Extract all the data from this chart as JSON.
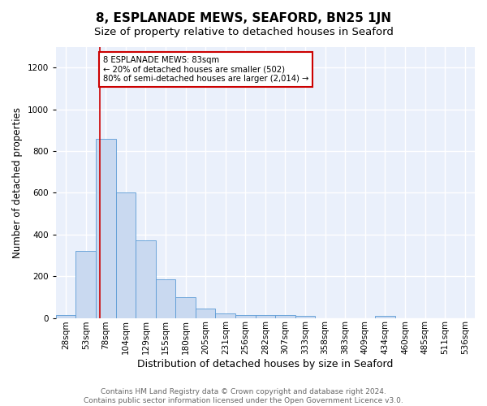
{
  "title": "8, ESPLANADE MEWS, SEAFORD, BN25 1JN",
  "subtitle": "Size of property relative to detached houses in Seaford",
  "xlabel": "Distribution of detached houses by size in Seaford",
  "ylabel": "Number of detached properties",
  "bar_labels": [
    "28sqm",
    "53sqm",
    "78sqm",
    "104sqm",
    "129sqm",
    "155sqm",
    "180sqm",
    "205sqm",
    "231sqm",
    "256sqm",
    "282sqm",
    "307sqm",
    "333sqm",
    "358sqm",
    "383sqm",
    "409sqm",
    "434sqm",
    "460sqm",
    "485sqm",
    "511sqm",
    "536sqm"
  ],
  "bar_values": [
    15,
    320,
    860,
    600,
    370,
    185,
    100,
    45,
    20,
    15,
    15,
    15,
    10,
    0,
    0,
    0,
    10,
    0,
    0,
    0,
    0
  ],
  "bar_color": "#c9d9f0",
  "bar_edge_color": "#5b9bd5",
  "vline_color": "#cc0000",
  "annotation_text": "8 ESPLANADE MEWS: 83sqm\n← 20% of detached houses are smaller (502)\n80% of semi-detached houses are larger (2,014) →",
  "annotation_box_color": "white",
  "annotation_box_edge": "#cc0000",
  "ylim": [
    0,
    1300
  ],
  "yticks": [
    0,
    200,
    400,
    600,
    800,
    1000,
    1200
  ],
  "footnote": "Contains HM Land Registry data © Crown copyright and database right 2024.\nContains public sector information licensed under the Open Government Licence v3.0.",
  "bg_color": "#eaf0fb",
  "grid_color": "white",
  "title_fontsize": 11,
  "subtitle_fontsize": 9.5,
  "xlabel_fontsize": 9,
  "ylabel_fontsize": 8.5,
  "tick_fontsize": 7.5,
  "footnote_fontsize": 6.5,
  "vline_pos": 1.7
}
